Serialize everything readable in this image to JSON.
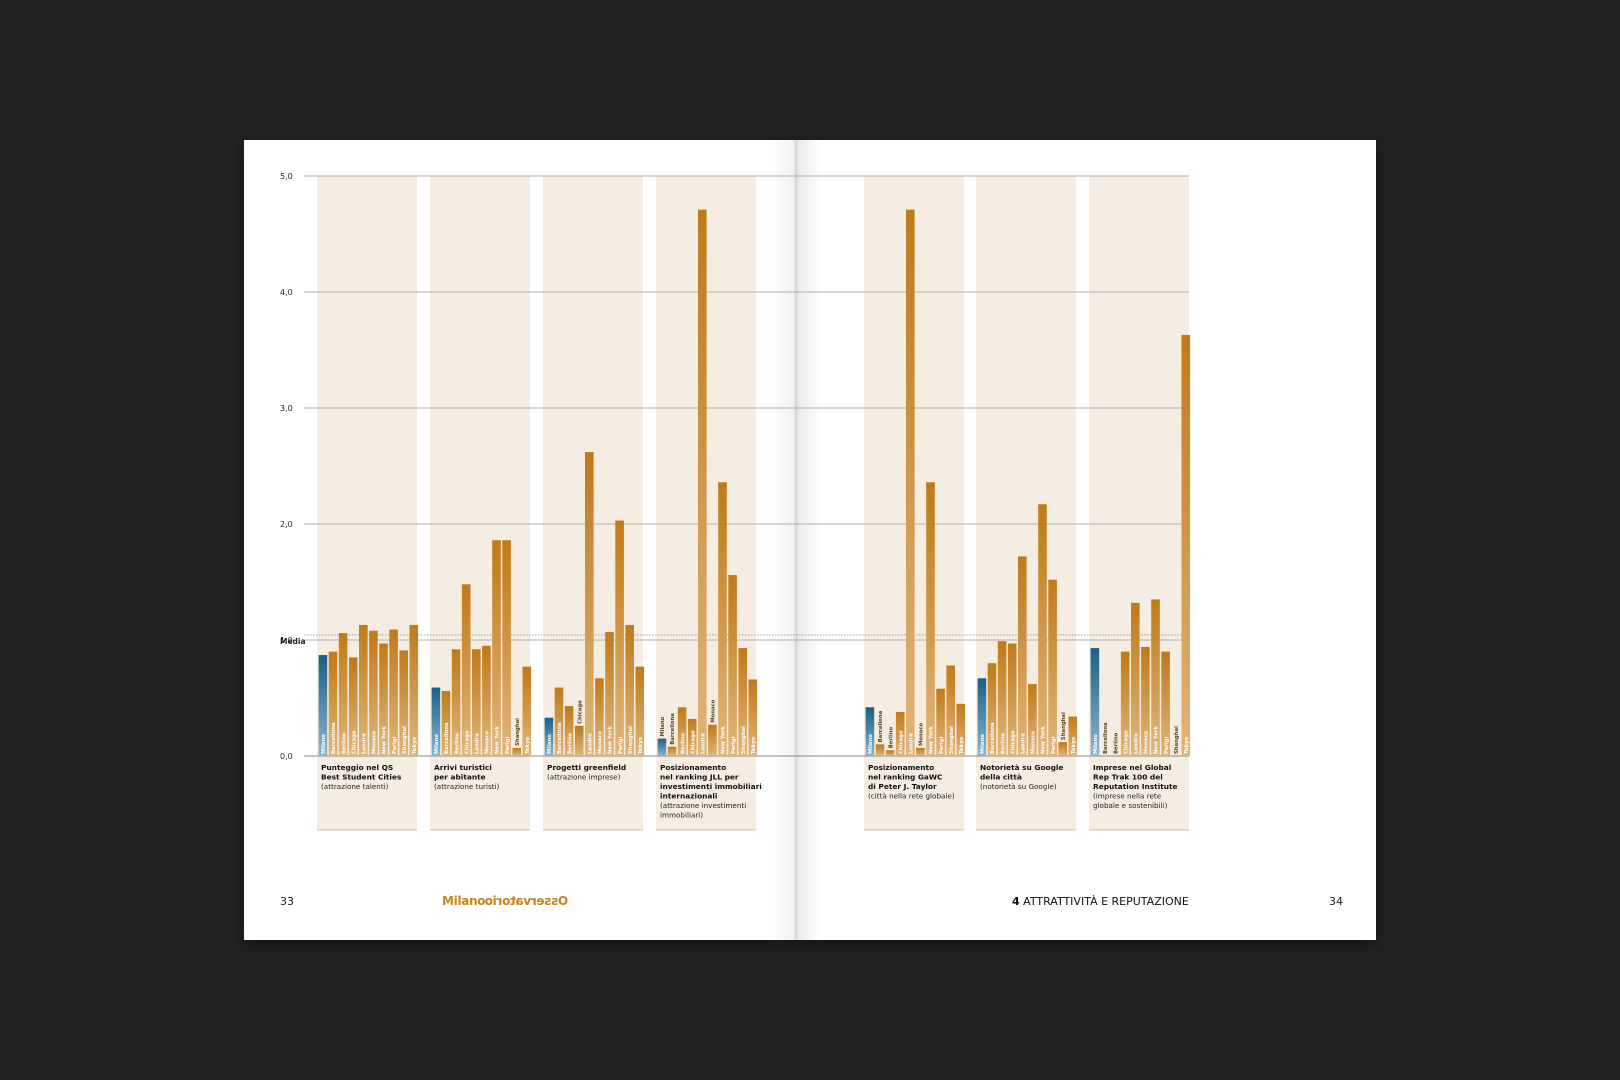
{
  "page": {
    "left_folio": "33",
    "right_folio": "34",
    "logo": {
      "text_a": "Milano",
      "text_b": "Osservatorio"
    },
    "section": {
      "number": "4",
      "title": "ATTRATTIVITÀ E REPUTAZIONE"
    }
  },
  "colors": {
    "background": "#232222",
    "panel": "#f6ede2",
    "bar_dark": "#c07a18",
    "bar_light": "#e0b57a",
    "highlight_dark": "#1b5f86",
    "highlight_light": "#8bb6cf"
  },
  "chart_data": {
    "type": "bar",
    "ylim": [
      0,
      5
    ],
    "yticks": [
      "0,0",
      "1,0",
      "2,0",
      "3,0",
      "4,0",
      "5,0"
    ],
    "reference_line": {
      "label": "Media",
      "value": 1.0
    },
    "highlight_city": "Milano",
    "panels": [
      {
        "title": "Punteggio nel QS\nBest Student Cities",
        "subtitle": "(attrazione talenti)",
        "categories": [
          "Milano",
          "Barcellona",
          "Berlino",
          "Chicago",
          "Londra",
          "Monaco",
          "New York",
          "Parigi",
          "Shanghai",
          "Tokyo"
        ],
        "values": [
          0.87,
          0.9,
          1.06,
          0.85,
          1.13,
          1.08,
          0.97,
          1.09,
          0.91,
          1.13
        ]
      },
      {
        "title": "Arrivi turistici\nper abitante",
        "subtitle": "(attrazione turisti)",
        "categories": [
          "Milano",
          "Barcellona",
          "Berlino",
          "Chicago",
          "Londra",
          "Monaco",
          "New York",
          "Parigi",
          "Shanghai",
          "Tokyo"
        ],
        "values": [
          0.59,
          0.56,
          0.92,
          1.48,
          0.92,
          0.95,
          1.86,
          1.86,
          0.07,
          0.77
        ]
      },
      {
        "title": "Progetti greenfield",
        "subtitle": "(attrazione imprese)",
        "categories": [
          "Milano",
          "Barcellona",
          "Berlino",
          "Chicago",
          "Londra",
          "Monaco",
          "New York",
          "Parigi",
          "Shanghai",
          "Tokyo"
        ],
        "values": [
          0.33,
          0.59,
          0.43,
          0.26,
          2.62,
          0.67,
          1.07,
          2.03,
          1.13,
          0.77
        ]
      },
      {
        "title": "Posizionamento\nnel ranking JLL per\ninvestimenti immobiliari\ninternazionali",
        "subtitle": "(attrazione investimenti\nimmobiliari)",
        "categories": [
          "Milano",
          "Barcellona",
          "Berlino",
          "Chicago",
          "Londra",
          "Monaco",
          "New York",
          "Parigi",
          "Shanghai",
          "Tokyo"
        ],
        "values": [
          0.15,
          0.08,
          0.42,
          0.32,
          4.71,
          0.27,
          2.36,
          1.56,
          0.93,
          0.66
        ]
      },
      {
        "title": "Posizionamento\nnel ranking GaWC\ndi Peter J. Taylor",
        "subtitle": "(città nella rete globale)",
        "categories": [
          "Milano",
          "Barcellona",
          "Berlino",
          "Chicago",
          "Londra",
          "Monaco",
          "New York",
          "Parigi",
          "Shanghai",
          "Tokyo"
        ],
        "values": [
          0.42,
          0.1,
          0.05,
          0.38,
          4.71,
          0.07,
          2.36,
          0.58,
          0.78,
          0.45
        ]
      },
      {
        "title": "Notorietà su Google\ndella città",
        "subtitle": "(notorietà su Google)",
        "categories": [
          "Milano",
          "Barcellona",
          "Berlino",
          "Chicago",
          "Londra",
          "Monaco",
          "New York",
          "Parigi",
          "Shanghai",
          "Tokyo"
        ],
        "values": [
          0.67,
          0.8,
          0.99,
          0.97,
          1.72,
          0.62,
          2.17,
          1.52,
          0.12,
          0.34
        ]
      },
      {
        "title": "Imprese nel Global\nRep Trak 100 del\nReputation Institute",
        "subtitle": "(imprese nella rete\nglobale e sostenibili)",
        "categories": [
          "Milano",
          "Barcellona",
          "Berlino",
          "Chicago",
          "Londra",
          "Monaco",
          "New York",
          "Parigi",
          "Shanghai",
          "Tokyo"
        ],
        "values": [
          0.93,
          0.0,
          0.0,
          0.9,
          1.32,
          0.94,
          1.35,
          0.9,
          0.0,
          3.63
        ]
      }
    ]
  }
}
